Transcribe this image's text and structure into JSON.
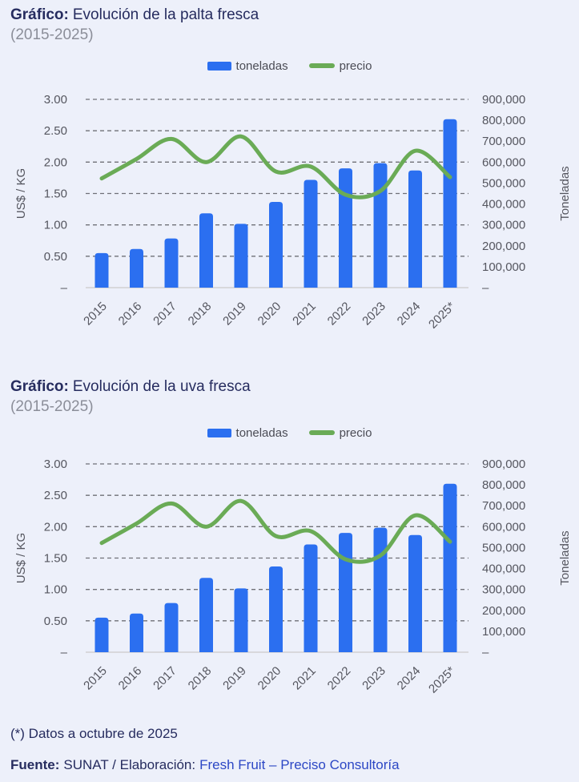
{
  "page": {
    "background": "#edf0fa"
  },
  "colors": {
    "bar_blue": "#2b6ff0",
    "line_green": "#6aab56",
    "title_navy": "#262c5f",
    "subtitle_gray": "#8b8e99",
    "axis_gray": "#55565f",
    "grid_gray": "#6f7077",
    "baseline_gray": "#d8d8dc",
    "link_blue": "#2c47c5"
  },
  "chart_data": [
    {
      "type": "bar",
      "combo": "bar+line",
      "title_prefix": "Gráfico:",
      "title": "Evolución de la palta fresca",
      "subtitle": "(2015-2025)",
      "categories": [
        "2015",
        "2016",
        "2017",
        "2018",
        "2019",
        "2020",
        "2021",
        "2022",
        "2023",
        "2024",
        "2025*"
      ],
      "series": [
        {
          "name": "toneladas",
          "type": "bar",
          "axis": "right",
          "color": "#2b6ff0",
          "values": [
            165000,
            185000,
            235000,
            355000,
            305000,
            410000,
            515000,
            570000,
            595000,
            560000,
            805000
          ]
        },
        {
          "name": "precio",
          "type": "line",
          "axis": "left",
          "color": "#6aab56",
          "values": [
            1.74,
            2.05,
            2.37,
            2.0,
            2.41,
            1.85,
            1.93,
            1.48,
            1.54,
            2.18,
            1.76
          ]
        }
      ],
      "left_axis": {
        "label": "US$ / KG",
        "min": 0,
        "max": 3,
        "ticks": [
          "3.00",
          "2.50",
          "2.00",
          "1.50",
          "1.00",
          "0.50",
          "–"
        ]
      },
      "right_axis": {
        "label": "Toneladas",
        "min": 0,
        "max": 900000,
        "ticks": [
          "900,000",
          "800,000",
          "700,000",
          "600,000",
          "500,000",
          "400,000",
          "300,000",
          "200,000",
          "100,000",
          "–"
        ]
      },
      "grid": "horizontal dashed",
      "legend_position": "top center"
    },
    {
      "type": "bar",
      "combo": "bar+line",
      "title_prefix": "Gráfico:",
      "title": "Evolución de la uva fresca",
      "subtitle": "(2015-2025)",
      "categories": [
        "2015",
        "2016",
        "2017",
        "2018",
        "2019",
        "2020",
        "2021",
        "2022",
        "2023",
        "2024",
        "2025*"
      ],
      "series": [
        {
          "name": "toneladas",
          "type": "bar",
          "axis": "right",
          "color": "#2b6ff0",
          "values": [
            165000,
            185000,
            235000,
            355000,
            305000,
            410000,
            515000,
            570000,
            595000,
            560000,
            805000
          ]
        },
        {
          "name": "precio",
          "type": "line",
          "axis": "left",
          "color": "#6aab56",
          "values": [
            1.74,
            2.05,
            2.37,
            2.0,
            2.41,
            1.85,
            1.93,
            1.48,
            1.54,
            2.18,
            1.76
          ]
        }
      ],
      "left_axis": {
        "label": "US$ / KG",
        "min": 0,
        "max": 3,
        "ticks": [
          "3.00",
          "2.50",
          "2.00",
          "1.50",
          "1.00",
          "0.50",
          "–"
        ]
      },
      "right_axis": {
        "label": "Toneladas",
        "min": 0,
        "max": 900000,
        "ticks": [
          "900,000",
          "800,000",
          "700,000",
          "600,000",
          "500,000",
          "400,000",
          "300,000",
          "200,000",
          "100,000",
          "–"
        ]
      },
      "grid": "horizontal dashed",
      "legend_position": "top center"
    }
  ],
  "footer": {
    "note": "(*) Datos a octubre de 2025",
    "source_label": "Fuente:",
    "source_text": "SUNAT / Elaboración:",
    "source_org": "Fresh Fruit – Preciso Consultoría"
  }
}
